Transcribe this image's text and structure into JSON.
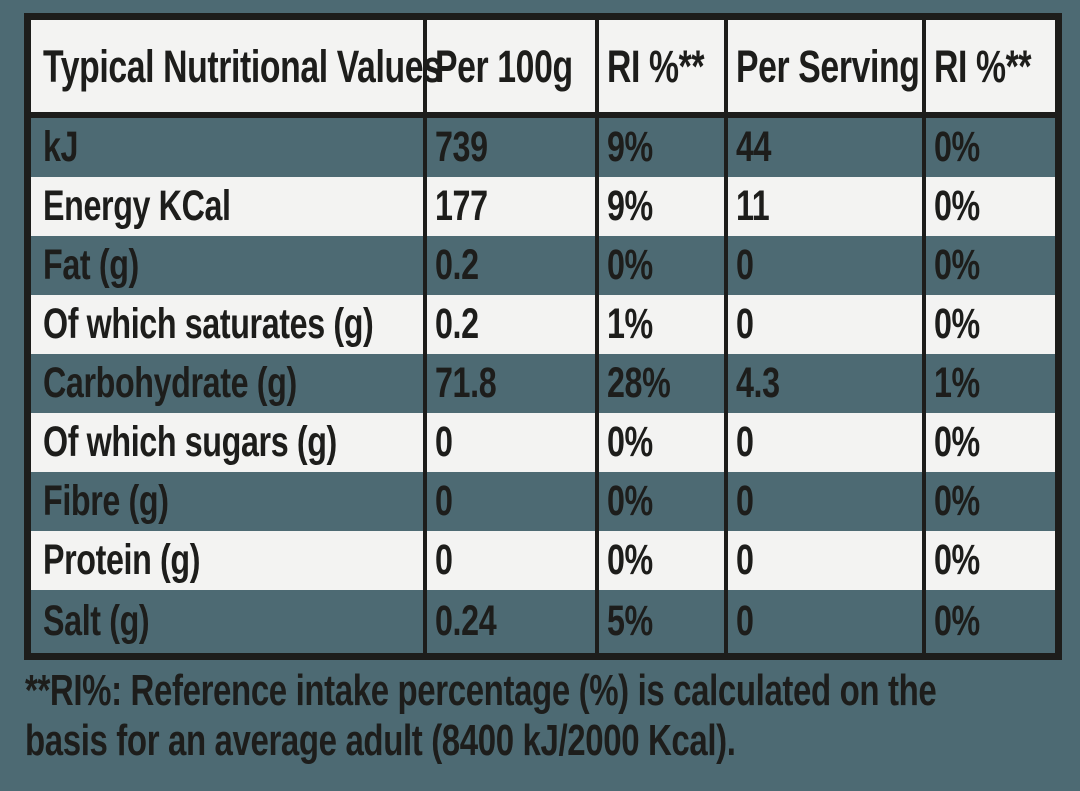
{
  "table": {
    "columns": [
      "Typical Nutritional Values",
      "Per 100g",
      "RI %**",
      "Per Serving",
      "RI %**"
    ],
    "rows": [
      {
        "label": "kJ",
        "per_100g": "739",
        "ri_100g": "9%",
        "per_serving": "44",
        "ri_serving": "0%"
      },
      {
        "label": "Energy KCal",
        "per_100g": "177",
        "ri_100g": "9%",
        "per_serving": "11",
        "ri_serving": "0%"
      },
      {
        "label": "Fat (g)",
        "per_100g": "0.2",
        "ri_100g": "0%",
        "per_serving": "0",
        "ri_serving": "0%"
      },
      {
        "label": "Of which saturates (g)",
        "per_100g": "0.2",
        "ri_100g": "1%",
        "per_serving": "0",
        "ri_serving": "0%"
      },
      {
        "label": "Carbohydrate (g)",
        "per_100g": "71.8",
        "ri_100g": "28%",
        "per_serving": "4.3",
        "ri_serving": "1%"
      },
      {
        "label": "Of which sugars (g)",
        "per_100g": "0",
        "ri_100g": "0%",
        "per_serving": "0",
        "ri_serving": "0%"
      },
      {
        "label": "Fibre (g)",
        "per_100g": "0",
        "ri_100g": "0%",
        "per_serving": "0",
        "ri_serving": "0%"
      },
      {
        "label": "Protein (g)",
        "per_100g": "0",
        "ri_100g": "0%",
        "per_serving": "0",
        "ri_serving": "0%"
      },
      {
        "label": "Salt (g)",
        "per_100g": "0.24",
        "ri_100g": "5%",
        "per_serving": "0",
        "ri_serving": "0%"
      }
    ]
  },
  "footnote": {
    "line1": "**RI%: Reference intake percentage (%) is calculated on the",
    "line2": "basis for an average adult (8400 kJ/2000 Kcal)."
  },
  "colors": {
    "background_teal": "#4d6a73",
    "cell_white": "#f3f3f2",
    "border_black": "#1d1d1b",
    "text_black": "#1d1d1b"
  }
}
